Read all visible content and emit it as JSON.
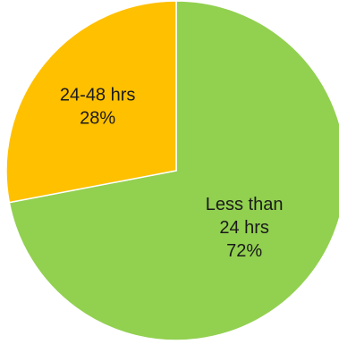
{
  "chart_data": {
    "type": "pie",
    "slices": [
      {
        "category": "Less than 24 hrs",
        "label_lines": [
          "Less than",
          "24 hrs",
          "72%"
        ],
        "value": 72,
        "color": "#92d050"
      },
      {
        "category": "24-48 hrs",
        "label_lines": [
          "24-48 hrs",
          "28%"
        ],
        "value": 28,
        "color": "#ffc000"
      }
    ],
    "start": "12 o'clock",
    "direction": "clockwise",
    "slice_border_color": "#ffffff",
    "title": "",
    "legend": "none"
  }
}
